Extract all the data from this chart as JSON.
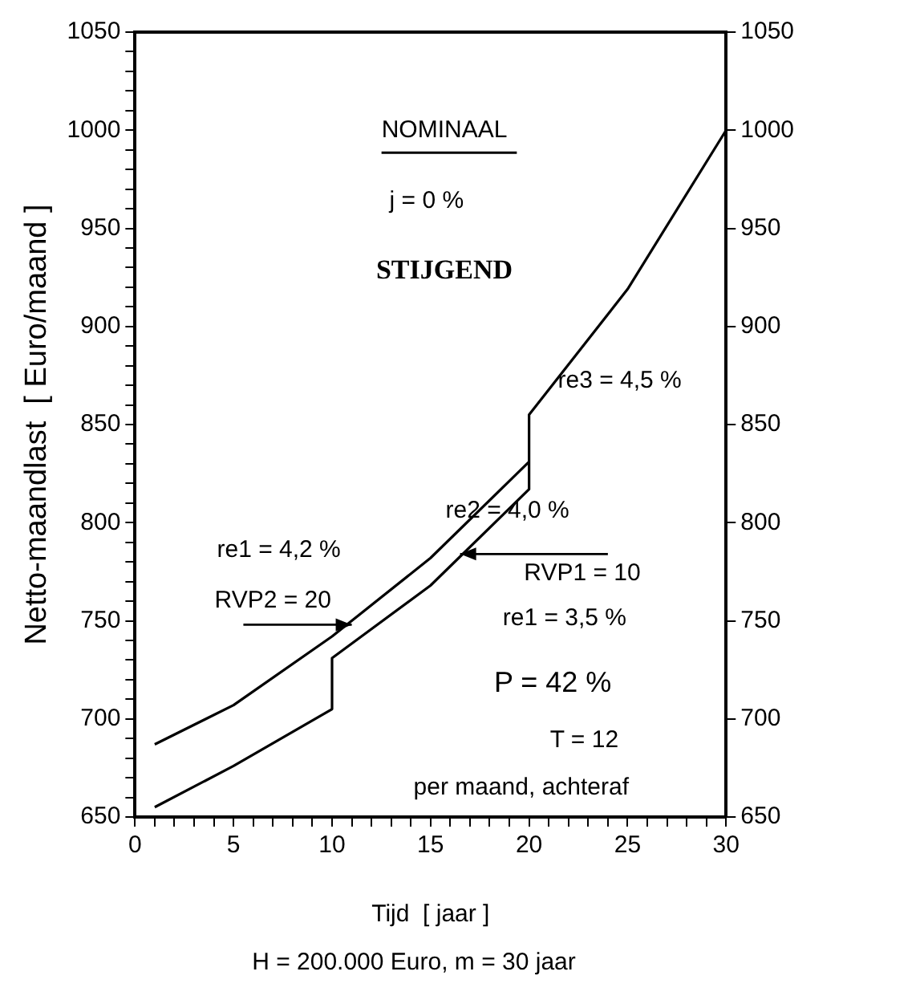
{
  "chart_data": {
    "type": "line",
    "xlabel": "Tijd  [ jaar ]",
    "ylabel": "Netto-maandlast  [ Euro/maand ]",
    "series": [
      {
        "color": "#000000",
        "x": [
          1,
          5,
          10,
          10,
          15,
          20,
          20,
          25,
          30
        ],
        "values": [
          655,
          676,
          705,
          731,
          768,
          817,
          855,
          919,
          1000
        ]
      },
      {
        "color": "#000000",
        "x": [
          1,
          5,
          10,
          15,
          20
        ],
        "values": [
          687,
          707,
          742,
          782,
          831
        ]
      }
    ],
    "xlim": [
      0,
      30
    ],
    "xticks": [
      0,
      {
        "value": 1,
        "label": null
      },
      {
        "value": 2,
        "label": null
      },
      {
        "value": 3,
        "label": null
      },
      {
        "value": 4,
        "label": null
      },
      5,
      {
        "value": 6,
        "label": null
      },
      {
        "value": 7,
        "label": null
      },
      {
        "value": 8,
        "label": null
      },
      {
        "value": 9,
        "label": null
      },
      10,
      {
        "value": 11,
        "label": null
      },
      {
        "value": 12,
        "label": null
      },
      {
        "value": 13,
        "label": null
      },
      {
        "value": 14,
        "label": null
      },
      15,
      {
        "value": 16,
        "label": null
      },
      {
        "value": 17,
        "label": null
      },
      {
        "value": 18,
        "label": null
      },
      {
        "value": 19,
        "label": null
      },
      20,
      {
        "value": 21,
        "label": null
      },
      {
        "value": 22,
        "label": null
      },
      {
        "value": 23,
        "label": null
      },
      {
        "value": 24,
        "label": null
      },
      25,
      {
        "value": 26,
        "label": null
      },
      {
        "value": 27,
        "label": null
      },
      {
        "value": 28,
        "label": null
      },
      {
        "value": 29,
        "label": null
      },
      30
    ],
    "ylim": [
      650,
      1050
    ],
    "yticks": [
      650,
      {
        "value": 660,
        "label": null
      },
      {
        "value": 670,
        "label": null
      },
      {
        "value": 680,
        "label": null
      },
      {
        "value": 690,
        "label": null
      },
      700,
      {
        "value": 710,
        "label": null
      },
      {
        "value": 720,
        "label": null
      },
      {
        "value": 730,
        "label": null
      },
      {
        "value": 740,
        "label": null
      },
      750,
      {
        "value": 760,
        "label": null
      },
      {
        "value": 770,
        "label": null
      },
      {
        "value": 780,
        "label": null
      },
      {
        "value": 790,
        "label": null
      },
      800,
      {
        "value": 810,
        "label": null
      },
      {
        "value": 820,
        "label": null
      },
      {
        "value": 830,
        "label": null
      },
      {
        "value": 840,
        "label": null
      },
      850,
      {
        "value": 860,
        "label": null
      },
      {
        "value": 870,
        "label": null
      },
      {
        "value": 880,
        "label": null
      },
      {
        "value": 890,
        "label": null
      },
      900,
      {
        "value": 910,
        "label": null
      },
      {
        "value": 920,
        "label": null
      },
      {
        "value": 930,
        "label": null
      },
      {
        "value": 940,
        "label": null
      },
      950,
      {
        "value": 960,
        "label": null
      },
      {
        "value": 970,
        "label": null
      },
      {
        "value": 980,
        "label": null
      },
      {
        "value": 990,
        "label": null
      },
      1000,
      {
        "value": 1010,
        "label": null
      },
      {
        "value": 1020,
        "label": null
      },
      {
        "value": 1030,
        "label": null
      },
      {
        "value": 1040,
        "label": null
      },
      1050
    ],
    "y2lim": [
      650,
      1050
    ],
    "y2ticks": [
      650,
      700,
      750,
      800,
      850,
      900,
      950,
      1000,
      1050
    ],
    "grid": false,
    "legend": false,
    "marker": "none",
    "line_style": "solid",
    "annotations": [
      "NOMINAAL",
      "j = 0 %",
      "STIJGEND",
      "re3 = 4,5 %",
      "re2 = 4,0 %",
      "re1 = 4,2 %",
      {
        "text": "RVP2 = 20",
        "x": 11,
        "y": 748
      },
      {
        "text": "RVP1 = 10",
        "x": 16.5,
        "y": 784
      },
      "re1 = 3,5 %",
      "P = 42 %",
      "T = 12",
      "per maand, achteraf",
      "H = 200.000 Euro,  m = 30 jaar"
    ]
  }
}
